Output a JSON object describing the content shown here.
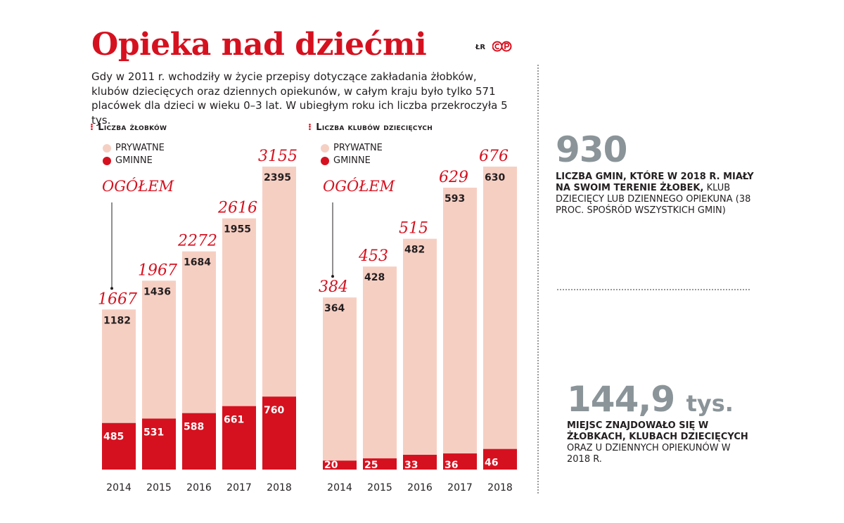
{
  "title": "Opieka nad dziećmi",
  "credit": "ŁR",
  "intro": "Gdy w 2011 r. wchodziły w życie przepisy dotyczące zakładania żłobków, klubów dziecięcych oraz dziennych opiekunów, w całym kraju było tylko 571 placówek dla dzieci w wieku 0–3 lat. W ubiegłym roku ich liczba przekroczyła 5 tys.",
  "colors": {
    "accent": "#d6111f",
    "private": "#f6cfc3",
    "grey": "#8a9499"
  },
  "chart_data": [
    {
      "type": "bar",
      "stacked": true,
      "title": "Liczba żłobków",
      "legend": [
        "PRYWATNE",
        "GMINNE"
      ],
      "total_label": "OGÓŁEM",
      "categories": [
        "2014",
        "2015",
        "2016",
        "2017",
        "2018"
      ],
      "series": [
        {
          "name": "GMINNE",
          "values": [
            485,
            531,
            588,
            661,
            760
          ]
        },
        {
          "name": "PRYWATNE",
          "values": [
            1182,
            1436,
            1684,
            1955,
            2395
          ]
        }
      ],
      "totals": [
        1667,
        1967,
        2272,
        2616,
        3155
      ],
      "ylim": [
        0,
        3155
      ]
    },
    {
      "type": "bar",
      "stacked": true,
      "title": "Liczba klubów dziecięcych",
      "legend": [
        "PRYWATNE",
        "GMINNE"
      ],
      "total_label": "OGÓŁEM",
      "categories": [
        "2014",
        "2015",
        "2016",
        "2017",
        "2018"
      ],
      "series": [
        {
          "name": "GMINNE",
          "values": [
            20,
            25,
            33,
            36,
            46
          ]
        },
        {
          "name": "PRYWATNE",
          "values": [
            364,
            428,
            482,
            593,
            630
          ]
        }
      ],
      "totals": [
        384,
        453,
        515,
        629,
        676
      ],
      "ylim": [
        0,
        676
      ]
    }
  ],
  "stats": [
    {
      "value": "930",
      "unit": "",
      "bold": "LICZBA GMIN, KTÓRE W 2018 R. MIAŁY NA SWOIM TERENIE ŻŁOBEK,",
      "rest": " KLUB DZIECIĘCY LUB DZIENNEGO OPIEKUNA (38 PROC. SPOŚRÓD WSZYSTKICH GMIN)"
    },
    {
      "value": "144,9",
      "unit": "tys.",
      "bold": "MIEJSC ZNAJDOWAŁO SIĘ W ŻŁOBKACH, KLUBACH DZIECIĘCYCH",
      "rest": " ORAZ U DZIENNYCH OPIEKUNÓW W 2018 R."
    }
  ]
}
